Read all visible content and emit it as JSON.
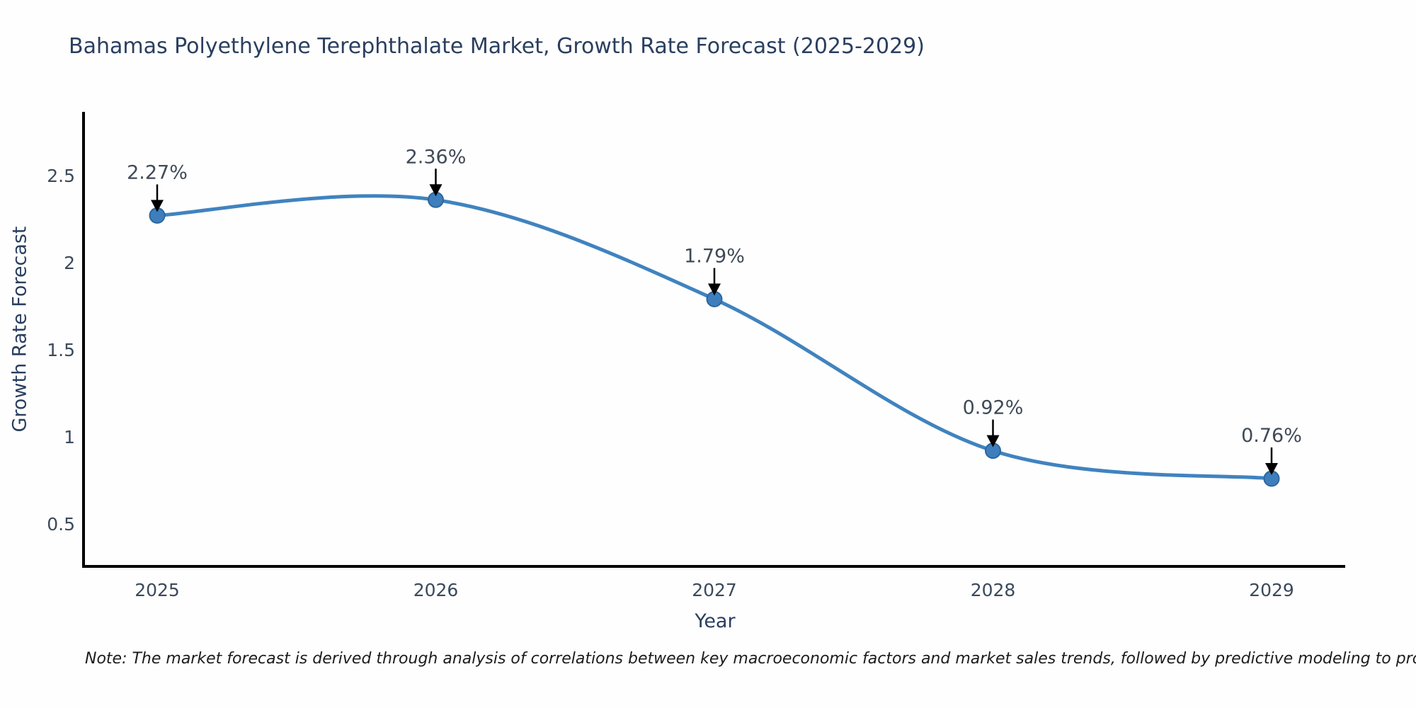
{
  "chart_data": {
    "type": "line",
    "title": "Bahamas Polyethylene Terephthalate Market, Growth Rate Forecast (2025-2029)",
    "xlabel": "Year",
    "ylabel": "Growth Rate Forecast",
    "categories": [
      "2025",
      "2026",
      "2027",
      "2028",
      "2029"
    ],
    "values": [
      2.27,
      2.36,
      1.79,
      0.92,
      0.76
    ],
    "point_labels": [
      "2.27%",
      "2.36%",
      "1.79%",
      "0.92%",
      "0.76%"
    ],
    "yticks": [
      0.5,
      1,
      1.5,
      2,
      2.5
    ],
    "ytick_labels": [
      "0.5",
      "1",
      "1.5",
      "2",
      "2.5"
    ],
    "ylim": [
      0.256,
      2.857
    ],
    "grid": false,
    "legend": "none",
    "line_smooth": true,
    "colors": {
      "line": "#4083bf",
      "marker_fill": "#3d7ebd",
      "marker_edge": "#2f669c",
      "axis": "#000000",
      "title_text": "#2a3f5f",
      "tick_text": "#3b4a5c",
      "annotation": "#3f4a57",
      "arrow": "#000000"
    },
    "note": "Note: The market forecast is derived through analysis of correlations between key macroeconomic factors and market sales trends, followed by predictive modeling to project future sales"
  }
}
